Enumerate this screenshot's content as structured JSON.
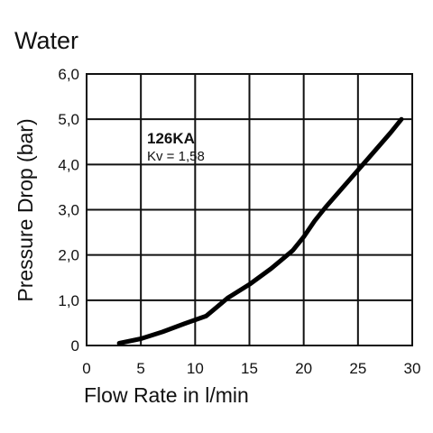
{
  "chart_data": {
    "type": "line",
    "title": "Water",
    "xlabel": "Flow Rate in l/min",
    "ylabel": "Pressure Drop (bar)",
    "xlim": [
      0,
      30
    ],
    "ylim": [
      0,
      6
    ],
    "x_ticks": [
      "0",
      "5",
      "10",
      "15",
      "20",
      "25",
      "30"
    ],
    "y_ticks": [
      "0",
      "1,0",
      "2,0",
      "3,0",
      "4,0",
      "5,0",
      "6,0"
    ],
    "grid": true,
    "legend": "none",
    "line_color": "#000000",
    "annotation": {
      "title": "126KA",
      "subtitle": "Kv = 1,58"
    },
    "series": [
      {
        "x": [
          3,
          5,
          7,
          9,
          11,
          12,
          13,
          15,
          17,
          18,
          19,
          20,
          21,
          22,
          24,
          26,
          28,
          29
        ],
        "y": [
          0.05,
          0.15,
          0.3,
          0.48,
          0.65,
          0.85,
          1.05,
          1.35,
          1.7,
          1.9,
          2.1,
          2.4,
          2.75,
          3.05,
          3.6,
          4.15,
          4.7,
          5.0
        ]
      }
    ]
  }
}
